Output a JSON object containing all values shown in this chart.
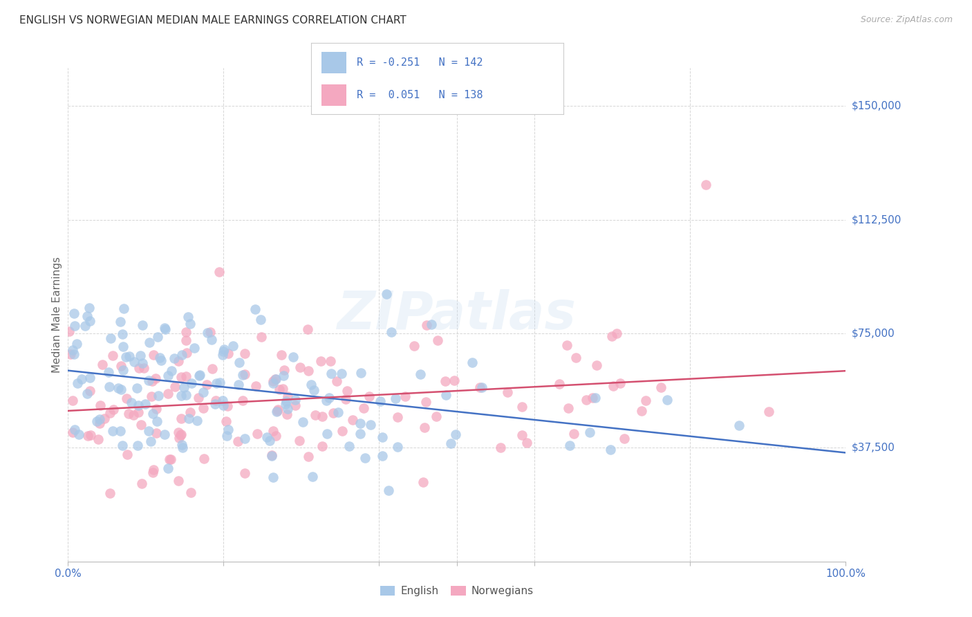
{
  "title": "ENGLISH VS NORWEGIAN MEDIAN MALE EARNINGS CORRELATION CHART",
  "source": "Source: ZipAtlas.com",
  "ylabel": "Median Male Earnings",
  "background_color": "#ffffff",
  "grid_color": "#cccccc",
  "watermark": "ZIPatlas",
  "english_color": "#a8c8e8",
  "norwegian_color": "#f4a8c0",
  "english_line_color": "#4472c4",
  "norwegian_line_color": "#d45070",
  "legend_english_r": "R = -0.251",
  "legend_english_n": "N = 142",
  "legend_norwegian_r": "R =  0.051",
  "legend_norwegian_n": "N = 138",
  "english_R": -0.251,
  "english_N": 142,
  "norwegian_R": 0.051,
  "norwegian_N": 138,
  "title_color": "#333333",
  "tick_label_color": "#4472c4",
  "source_color": "#aaaaaa",
  "ytick_vals": [
    37500,
    75000,
    112500,
    150000
  ],
  "ytick_labels": [
    "$37,500",
    "$75,000",
    "$112,500",
    "$150,000"
  ],
  "y_min": 0,
  "y_max": 162500,
  "scatter_size": 110,
  "scatter_alpha": 0.75,
  "line_width": 1.8
}
